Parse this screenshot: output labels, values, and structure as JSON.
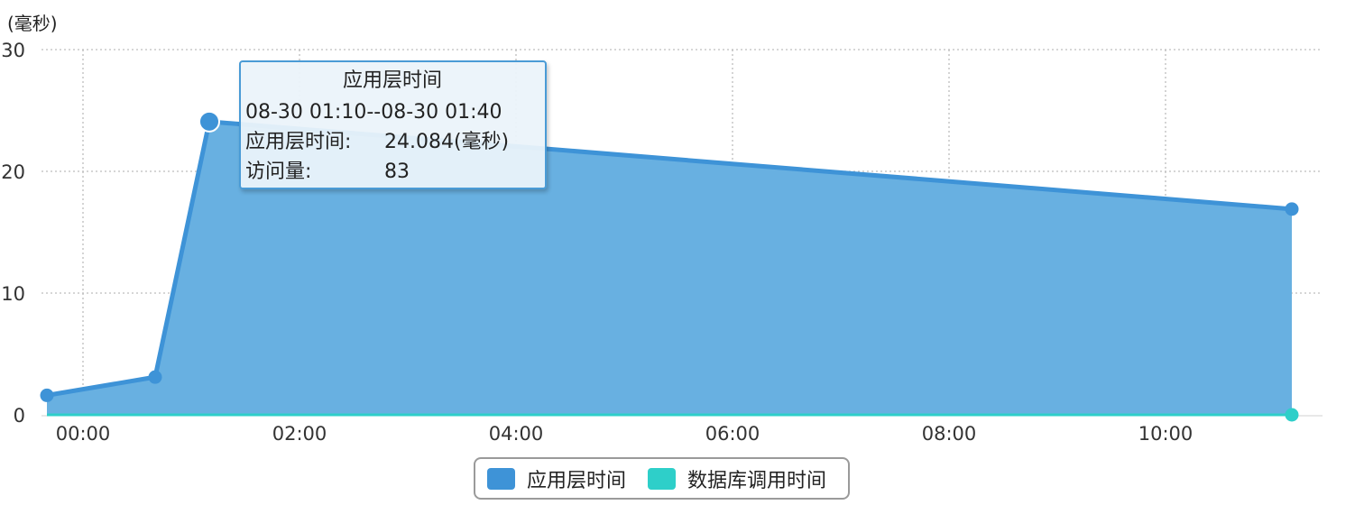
{
  "chart_data": {
    "type": "area",
    "ylabel": "(毫秒)",
    "ylim": [
      0,
      30
    ],
    "yticks": [
      "0",
      "10",
      "20",
      "30"
    ],
    "xticks": [
      "00:00",
      "02:00",
      "04:00",
      "06:00",
      "08:00",
      "10:00"
    ],
    "xlim": [
      "23:37",
      "11:27"
    ],
    "grid": true,
    "legend_position": "bottom-center",
    "series": [
      {
        "name": "应用层时间",
        "color": "#3e93d7",
        "fill_color": "#68b0e1",
        "points": [
          {
            "x": "23:40",
            "y": 1.6
          },
          {
            "x": "00:40",
            "y": 3.1
          },
          {
            "x": "01:10",
            "y": 24.084
          },
          {
            "x": "11:10",
            "y": 16.9
          }
        ]
      },
      {
        "name": "数据库调用时间",
        "color": "#2ecfc9",
        "points": [
          {
            "x": "23:40",
            "y": 0
          },
          {
            "x": "00:40",
            "y": 0
          },
          {
            "x": "01:10",
            "y": 0
          },
          {
            "x": "11:10",
            "y": 0
          }
        ]
      }
    ],
    "tooltip": {
      "title": "应用层时间",
      "range": "08-30 01:10--08-30 01:40",
      "rows": [
        {
          "label": "应用层时间:",
          "value": "24.084(毫秒)"
        },
        {
          "label": "访问量:",
          "value": "83"
        }
      ]
    }
  }
}
